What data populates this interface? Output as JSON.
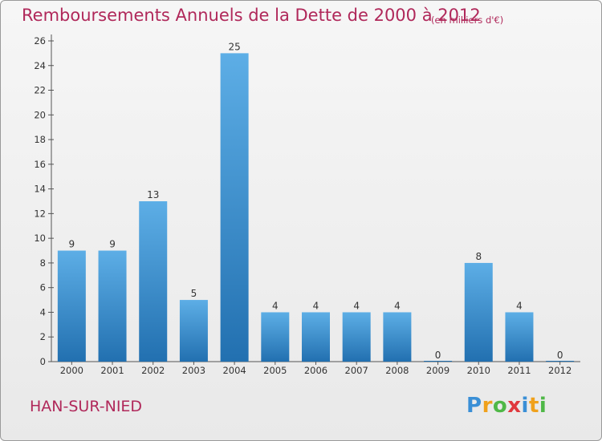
{
  "title": "Remboursements Annuels de la Dette de 2000 à 2012",
  "unit": "(en milliers d'€)",
  "town": "HAN-SUR-NIED",
  "logo": {
    "text": "Proxiti"
  },
  "colors": {
    "bar_top": "#5daee6",
    "bar_bottom": "#2270b0",
    "title": "#b0285a"
  },
  "chart_data": {
    "type": "bar",
    "title": "Remboursements Annuels de la Dette de 2000 à 2012",
    "xlabel": "",
    "ylabel": "",
    "categories": [
      "2000",
      "2001",
      "2002",
      "2003",
      "2004",
      "2005",
      "2006",
      "2007",
      "2008",
      "2009",
      "2010",
      "2011",
      "2012"
    ],
    "values": [
      9,
      9,
      13,
      5,
      25,
      4,
      4,
      4,
      4,
      0,
      8,
      4,
      0
    ],
    "ylim": [
      0,
      26
    ],
    "yticks": [
      0,
      2,
      4,
      6,
      8,
      10,
      12,
      14,
      16,
      18,
      20,
      22,
      24,
      26
    ],
    "grid": false,
    "data_labels": true
  }
}
